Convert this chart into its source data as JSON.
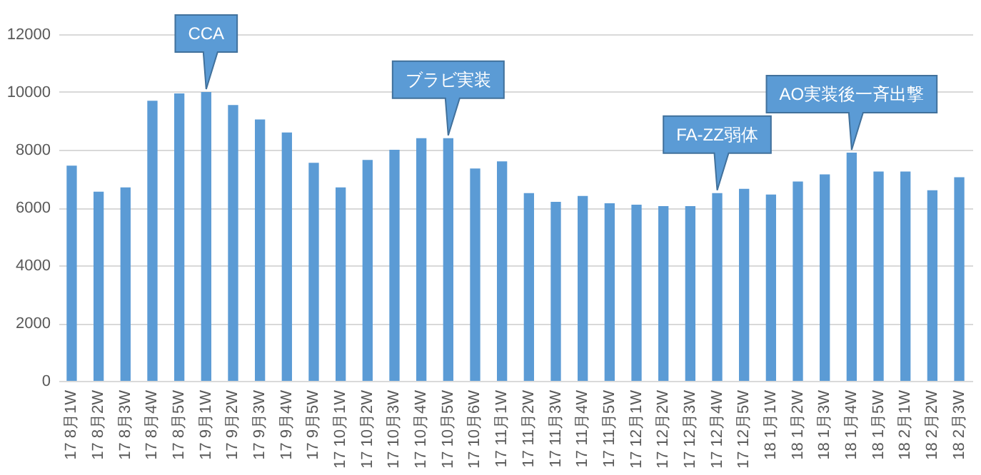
{
  "chart_data": {
    "type": "bar",
    "categories": [
      "17 8月1W",
      "17 8月2W",
      "17 8月3W",
      "17 8月4W",
      "17 8月5W",
      "17 9月1W",
      "17 9月2W",
      "17 9月3W",
      "17 9月4W",
      "17 9月5W",
      "17 10月1W",
      "17 10月2W",
      "17 10月3W",
      "17 10月4W",
      "17 10月5W",
      "17 10月6W",
      "17 11月1W",
      "17 11月2W",
      "17 11月3W",
      "17 11月4W",
      "17 11月5W",
      "17 12月1W",
      "17 12月2W",
      "17 12月3W",
      "17 12月4W",
      "17 12月5W",
      "18 1月1W",
      "18 1月2W",
      "18 1月3W",
      "18 1月4W",
      "18 1月5W",
      "18 2月1W",
      "18 2月2W",
      "18 2月3W"
    ],
    "values": [
      7450,
      6550,
      6700,
      9700,
      9950,
      10000,
      9550,
      9050,
      8600,
      7550,
      6700,
      7650,
      8000,
      8400,
      8400,
      7350,
      7600,
      6500,
      6200,
      6400,
      6150,
      6100,
      6050,
      6050,
      6500,
      6650,
      6450,
      6900,
      7150,
      7900,
      7250,
      7250,
      6600,
      7050
    ],
    "color": "#5b9bd5",
    "ylim": [
      0,
      12000
    ],
    "yticks": [
      0,
      2000,
      4000,
      6000,
      8000,
      10000,
      12000
    ],
    "grid": "y",
    "annotations": [
      {
        "text": "CCA",
        "x": "17 9月1W",
        "y": 10000
      },
      {
        "text": "ブラビ実装",
        "x": "17 10月5W",
        "y": 8400
      },
      {
        "text": "FA-ZZ弱体",
        "x": "17 12月4W",
        "y": 6500
      },
      {
        "text": "AO実装後一斉出撃",
        "x": "18 1月4W",
        "y": 7900
      }
    ]
  }
}
